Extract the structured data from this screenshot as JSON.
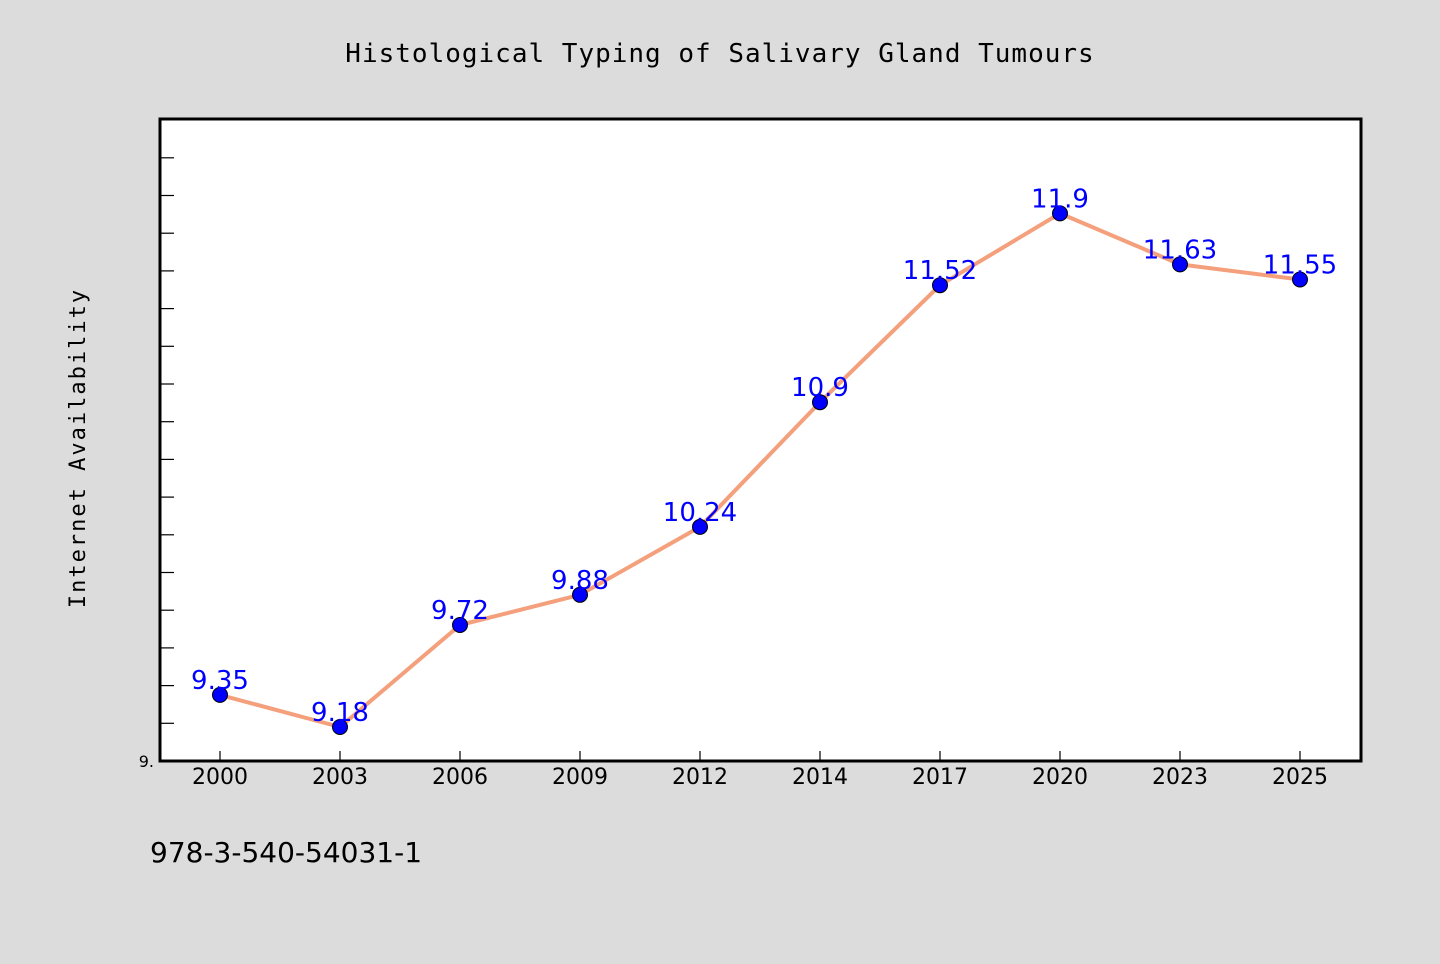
{
  "chart_data": {
    "type": "line",
    "title": "Histological Typing of Salivary Gland Tumours",
    "xlabel": "",
    "ylabel": "Internet Availability",
    "categories": [
      "2000",
      "2003",
      "2006",
      "2009",
      "2012",
      "2014",
      "2017",
      "2020",
      "2023",
      "2025"
    ],
    "series": [
      {
        "values": [
          9.35,
          9.18,
          9.72,
          9.88,
          10.24,
          10.9,
          11.52,
          11.9,
          11.63,
          11.55
        ],
        "data_labels": [
          "9.35",
          "9.18",
          "9.72",
          "9.88",
          "10.24",
          "10.9",
          "11.52",
          "11.9",
          "11.63",
          "11.55"
        ]
      }
    ],
    "ylim": [
      9.0,
      12.4
    ],
    "y_tick_labels": [
      "9."
    ],
    "grid": false,
    "colors": {
      "line": "#f4a07c",
      "marker": "#0000ff",
      "data_label": "#0000ff",
      "background": "#dcdcdc",
      "plot_background": "#ffffff"
    }
  },
  "footer": {
    "isbn": "978-3-540-54031-1"
  }
}
